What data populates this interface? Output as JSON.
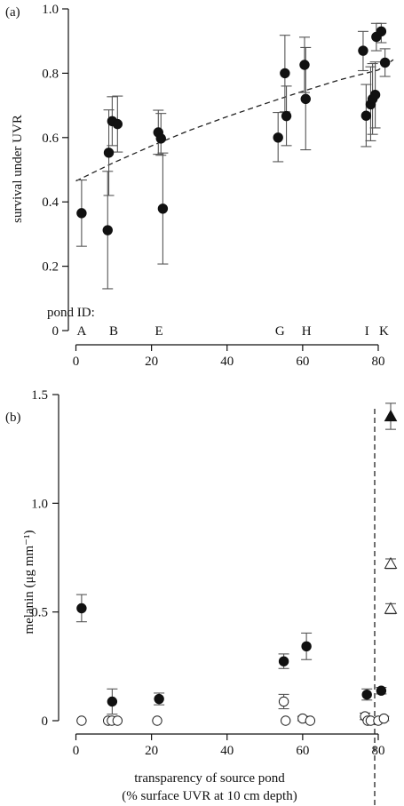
{
  "chart_data": [
    {
      "type": "scatter",
      "panel_label": "(a)",
      "title": "",
      "xlabel": "",
      "ylabel": "survival under UVR",
      "xlim": [
        -2,
        84
      ],
      "ylim": [
        0,
        1.0
      ],
      "x_ticks": [
        0,
        20,
        40,
        60,
        80
      ],
      "y_ticks": [
        0,
        0.2,
        0.4,
        0.6,
        0.8,
        1.0
      ],
      "y_tick_labels": [
        "0",
        "0.2",
        "0.4",
        "0.6",
        "0.8",
        "1.0"
      ],
      "pond_id_title": "pond ID:",
      "pond_ids": [
        {
          "label": "A",
          "x": 1.5
        },
        {
          "label": "B",
          "x": 10
        },
        {
          "label": "E",
          "x": 22
        },
        {
          "label": "G",
          "x": 54
        },
        {
          "label": "H",
          "x": 61
        },
        {
          "label": "I",
          "x": 77
        },
        {
          "label": "K",
          "x": 81.5
        }
      ],
      "series": [
        {
          "marker": "filled-circle",
          "points": [
            {
              "x": 1.5,
              "y": 0.365,
              "lo": 0.262,
              "hi": 0.468
            },
            {
              "x": 8.4,
              "y": 0.312,
              "lo": 0.13,
              "hi": 0.495
            },
            {
              "x": 8.7,
              "y": 0.553,
              "lo": 0.42,
              "hi": 0.686
            },
            {
              "x": 9.6,
              "y": 0.651,
              "lo": 0.575,
              "hi": 0.727
            },
            {
              "x": 11.0,
              "y": 0.642,
              "lo": 0.555,
              "hi": 0.729
            },
            {
              "x": 21.8,
              "y": 0.616,
              "lo": 0.548,
              "hi": 0.685
            },
            {
              "x": 22.5,
              "y": 0.597,
              "lo": 0.545,
              "hi": 0.675
            },
            {
              "x": 23.0,
              "y": 0.379,
              "lo": 0.207,
              "hi": 0.552
            },
            {
              "x": 53.5,
              "y": 0.6,
              "lo": 0.525,
              "hi": 0.678
            },
            {
              "x": 55.3,
              "y": 0.8,
              "lo": 0.68,
              "hi": 0.918
            },
            {
              "x": 55.7,
              "y": 0.667,
              "lo": 0.575,
              "hi": 0.76
            },
            {
              "x": 60.5,
              "y": 0.826,
              "lo": 0.74,
              "hi": 0.912
            },
            {
              "x": 60.8,
              "y": 0.72,
              "lo": 0.562,
              "hi": 0.88
            },
            {
              "x": 76.0,
              "y": 0.87,
              "lo": 0.808,
              "hi": 0.93
            },
            {
              "x": 76.8,
              "y": 0.668,
              "lo": 0.572,
              "hi": 0.765
            },
            {
              "x": 78.0,
              "y": 0.703,
              "lo": 0.59,
              "hi": 0.82
            },
            {
              "x": 78.5,
              "y": 0.72,
              "lo": 0.61,
              "hi": 0.83
            },
            {
              "x": 79.2,
              "y": 0.733,
              "lo": 0.63,
              "hi": 0.835
            },
            {
              "x": 79.5,
              "y": 0.913,
              "lo": 0.87,
              "hi": 0.955
            },
            {
              "x": 80.8,
              "y": 0.93,
              "lo": 0.895,
              "hi": 0.955
            },
            {
              "x": 81.8,
              "y": 0.833,
              "lo": 0.79,
              "hi": 0.876
            }
          ]
        }
      ],
      "fit_line": {
        "style": "dashed",
        "points": [
          [
            0,
            0.465
          ],
          [
            10,
            0.522
          ],
          [
            20,
            0.574
          ],
          [
            30,
            0.622
          ],
          [
            40,
            0.665
          ],
          [
            50,
            0.705
          ],
          [
            60,
            0.744
          ],
          [
            70,
            0.78
          ],
          [
            80,
            0.81
          ],
          [
            84,
            0.842
          ]
        ]
      }
    },
    {
      "type": "scatter",
      "panel_label": "(b)",
      "title": "",
      "xlabel": "transparency of source pond",
      "xlabel_line2": "(% surface UVR at 10 cm depth)",
      "ylabel": "melanin (μg mm⁻¹)",
      "xlim": [
        -2,
        84
      ],
      "ylim": [
        -0.05,
        1.55
      ],
      "x_ticks": [
        0,
        20,
        40,
        60,
        80
      ],
      "y_ticks": [
        0,
        0.5,
        1.0,
        1.5
      ],
      "y_tick_labels": [
        "0",
        "0.5",
        "1.0",
        "1.5"
      ],
      "series": [
        {
          "marker": "filled-circle",
          "points": [
            {
              "x": 1.5,
              "y": 0.517,
              "lo": 0.455,
              "hi": 0.58
            },
            {
              "x": 9.6,
              "y": 0.088,
              "lo": 0.03,
              "hi": 0.146
            },
            {
              "x": 22.0,
              "y": 0.1,
              "lo": 0.073,
              "hi": 0.127
            },
            {
              "x": 55.0,
              "y": 0.273,
              "lo": 0.24,
              "hi": 0.307
            },
            {
              "x": 61.0,
              "y": 0.342,
              "lo": 0.281,
              "hi": 0.403
            },
            {
              "x": 77.0,
              "y": 0.12,
              "lo": 0.095,
              "hi": 0.146
            },
            {
              "x": 80.8,
              "y": 0.138,
              "lo": 0.123,
              "hi": 0.153
            }
          ]
        },
        {
          "marker": "open-circle",
          "points": [
            {
              "x": 1.5,
              "y": 0.0
            },
            {
              "x": 8.5,
              "y": 0.0
            },
            {
              "x": 9.5,
              "y": 0.0
            },
            {
              "x": 11.0,
              "y": 0.0
            },
            {
              "x": 21.5,
              "y": 0.0
            },
            {
              "x": 55.0,
              "y": 0.088,
              "lo": 0.055,
              "hi": 0.121
            },
            {
              "x": 55.5,
              "y": 0.0
            },
            {
              "x": 60.0,
              "y": 0.01,
              "lo": 0.0,
              "hi": 0.02
            },
            {
              "x": 62.0,
              "y": 0.0
            },
            {
              "x": 76.5,
              "y": 0.02,
              "lo": 0.005,
              "hi": 0.035
            },
            {
              "x": 77.2,
              "y": 0.0
            },
            {
              "x": 78.0,
              "y": 0.0
            },
            {
              "x": 80.0,
              "y": 0.0
            },
            {
              "x": 81.5,
              "y": 0.01,
              "lo": 0.0,
              "hi": 0.02
            }
          ]
        }
      ],
      "reference_markers": [
        {
          "marker": "filled-triangle",
          "y": 1.4,
          "lo": 1.34,
          "hi": 1.46
        },
        {
          "marker": "open-triangle",
          "y": 0.722,
          "lo": 0.7,
          "hi": 0.744
        },
        {
          "marker": "open-triangle",
          "y": 0.515,
          "lo": 0.492,
          "hi": 0.538
        }
      ]
    }
  ]
}
